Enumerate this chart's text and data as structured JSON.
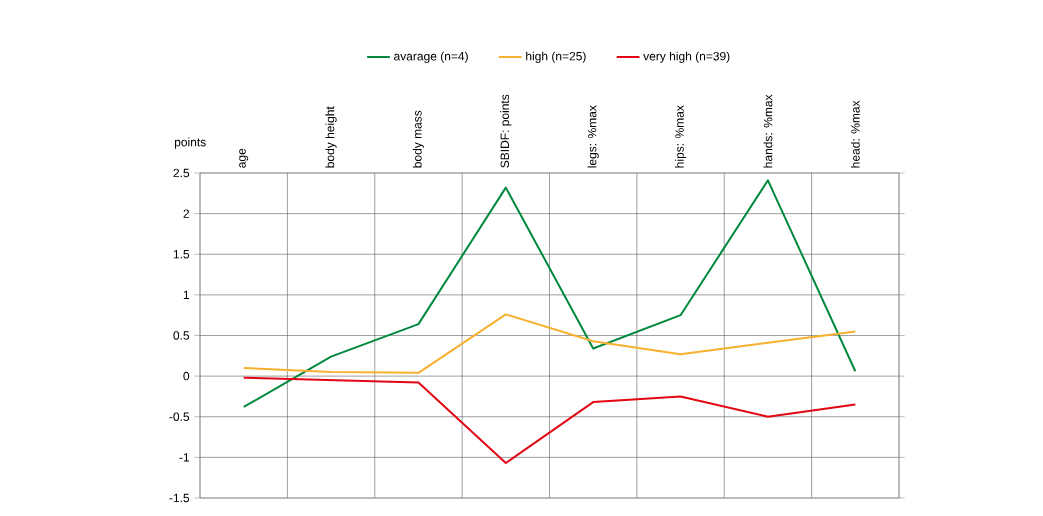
{
  "chart_data": {
    "type": "line",
    "ylabel": "points",
    "categories": [
      "age",
      "body height",
      "body mass",
      "SBIDF: points",
      "legs: %max",
      "hips: %max",
      "hands: %max",
      "head: %max"
    ],
    "series": [
      {
        "name": "avarage (n=4)",
        "color": "#00893e",
        "values": [
          -0.38,
          0.24,
          0.64,
          2.32,
          0.34,
          0.75,
          2.41,
          0.06
        ]
      },
      {
        "name": "high (n=25)",
        "color": "#f7b02f",
        "values": [
          0.1,
          0.05,
          0.04,
          0.76,
          0.43,
          0.27,
          0.41,
          0.55
        ]
      },
      {
        "name": "very high (n=39)",
        "color": "#e30613",
        "values": [
          -0.02,
          -0.05,
          -0.08,
          -1.07,
          -0.32,
          -0.25,
          -0.5,
          -0.35
        ]
      }
    ],
    "ylim": [
      -1.5,
      2.5
    ],
    "yticks": [
      -1.5,
      -1,
      -0.5,
      0,
      0.5,
      1,
      1.5,
      2,
      2.5
    ],
    "grid": true,
    "legend": "top",
    "marker": "none",
    "line_style": "solid"
  }
}
